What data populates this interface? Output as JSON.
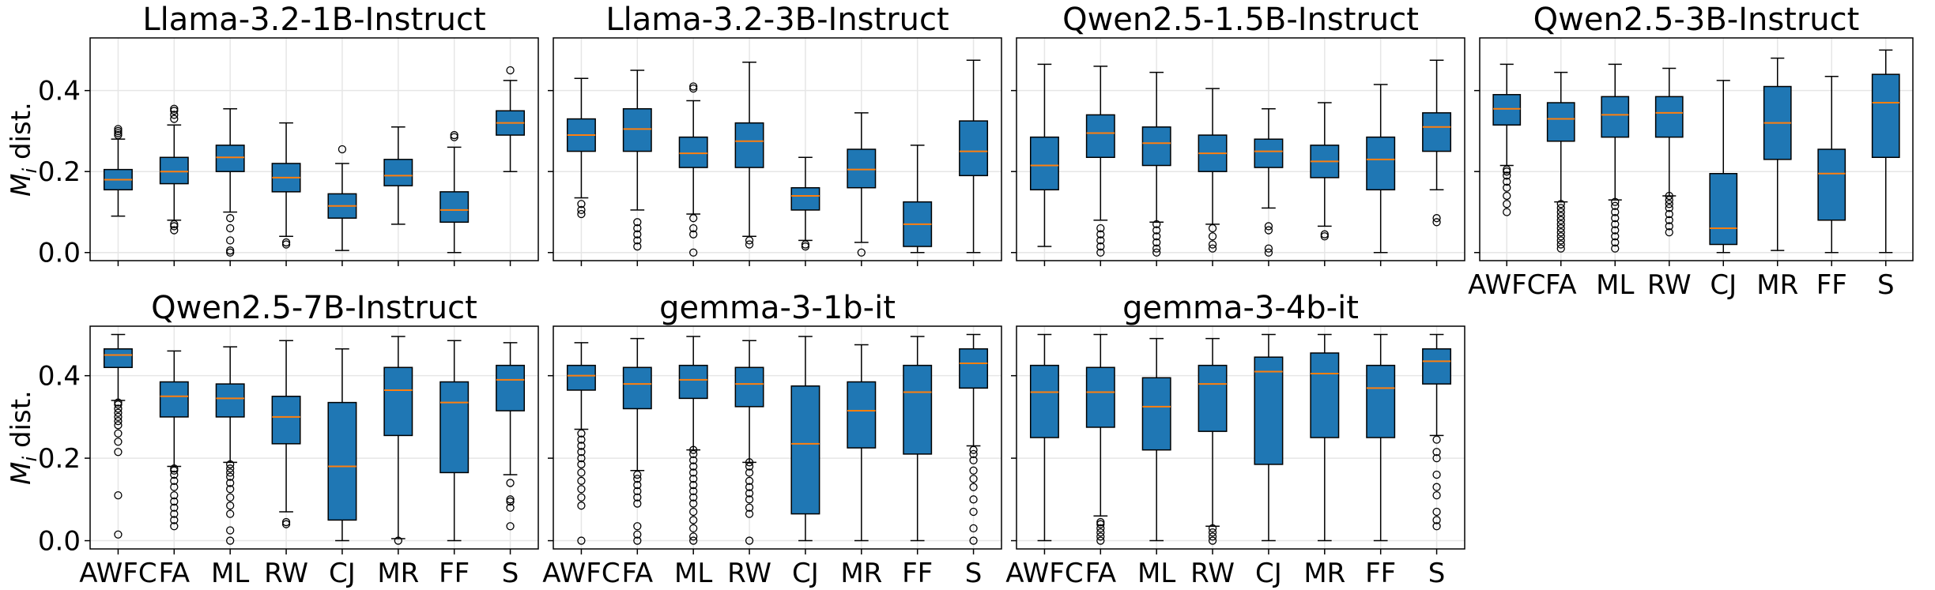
{
  "chart_data": {
    "type": "box",
    "ylabel": "M_i dist.",
    "ylabel_main": "M",
    "ylabel_sub": "i",
    "ylabel_rest": " dist.",
    "categories": [
      "AWFC",
      "FA",
      "ML",
      "RW",
      "CJ",
      "MR",
      "FF",
      "S"
    ],
    "yticks": [
      "0.0",
      "0.2",
      "0.4"
    ],
    "ytick_values": [
      0.0,
      0.2,
      0.4
    ],
    "box_color": "#1f77b4",
    "median_color": "#ff7f0e",
    "panels": [
      {
        "title": "Llama-3.2-1B-Instruct",
        "ylim": [
          -0.02,
          0.53
        ],
        "boxes": [
          {
            "min": 0.09,
            "q1": 0.155,
            "median": 0.18,
            "q3": 0.205,
            "max": 0.28,
            "fliers": [
              0.29,
              0.295,
              0.3,
              0.305
            ]
          },
          {
            "min": 0.08,
            "q1": 0.17,
            "median": 0.2,
            "q3": 0.235,
            "max": 0.315,
            "fliers": [
              0.055,
              0.065,
              0.07,
              0.33,
              0.34,
              0.35,
              0.355
            ]
          },
          {
            "min": 0.1,
            "q1": 0.2,
            "median": 0.235,
            "q3": 0.265,
            "max": 0.355,
            "fliers": [
              0.0,
              0.005,
              0.03,
              0.06,
              0.085
            ]
          },
          {
            "min": 0.04,
            "q1": 0.15,
            "median": 0.185,
            "q3": 0.22,
            "max": 0.32,
            "fliers": [
              0.02,
              0.025
            ]
          },
          {
            "min": 0.005,
            "q1": 0.085,
            "median": 0.115,
            "q3": 0.145,
            "max": 0.22,
            "fliers": [
              0.255
            ]
          },
          {
            "min": 0.07,
            "q1": 0.165,
            "median": 0.19,
            "q3": 0.23,
            "max": 0.31,
            "fliers": []
          },
          {
            "min": 0.0,
            "q1": 0.075,
            "median": 0.105,
            "q3": 0.15,
            "max": 0.26,
            "fliers": [
              0.285,
              0.29
            ]
          },
          {
            "min": 0.2,
            "q1": 0.29,
            "median": 0.32,
            "q3": 0.35,
            "max": 0.425,
            "fliers": [
              0.45
            ]
          }
        ]
      },
      {
        "title": "Llama-3.2-3B-Instruct",
        "ylim": [
          -0.02,
          0.53
        ],
        "boxes": [
          {
            "min": 0.135,
            "q1": 0.25,
            "median": 0.29,
            "q3": 0.33,
            "max": 0.43,
            "fliers": [
              0.095,
              0.105,
              0.12
            ]
          },
          {
            "min": 0.105,
            "q1": 0.25,
            "median": 0.305,
            "q3": 0.355,
            "max": 0.45,
            "fliers": [
              0.015,
              0.03,
              0.045,
              0.06,
              0.075
            ]
          },
          {
            "min": 0.095,
            "q1": 0.21,
            "median": 0.245,
            "q3": 0.285,
            "max": 0.375,
            "fliers": [
              0.0,
              0.045,
              0.06,
              0.085,
              0.405,
              0.41
            ]
          },
          {
            "min": 0.04,
            "q1": 0.21,
            "median": 0.275,
            "q3": 0.32,
            "max": 0.47,
            "fliers": [
              0.02,
              0.03
            ]
          },
          {
            "min": 0.03,
            "q1": 0.105,
            "median": 0.14,
            "q3": 0.16,
            "max": 0.235,
            "fliers": [
              0.015,
              0.02
            ]
          },
          {
            "min": 0.025,
            "q1": 0.16,
            "median": 0.205,
            "q3": 0.255,
            "max": 0.345,
            "fliers": [
              0.0
            ]
          },
          {
            "min": 0.0,
            "q1": 0.015,
            "median": 0.07,
            "q3": 0.125,
            "max": 0.265,
            "fliers": []
          },
          {
            "min": 0.0,
            "q1": 0.19,
            "median": 0.25,
            "q3": 0.325,
            "max": 0.475,
            "fliers": []
          }
        ]
      },
      {
        "title": "Qwen2.5-1.5B-Instruct",
        "ylim": [
          -0.02,
          0.53
        ],
        "boxes": [
          {
            "min": 0.015,
            "q1": 0.155,
            "median": 0.215,
            "q3": 0.285,
            "max": 0.465,
            "fliers": []
          },
          {
            "min": 0.08,
            "q1": 0.235,
            "median": 0.295,
            "q3": 0.34,
            "max": 0.46,
            "fliers": [
              0.0,
              0.015,
              0.03,
              0.045,
              0.06
            ]
          },
          {
            "min": 0.075,
            "q1": 0.215,
            "median": 0.27,
            "q3": 0.31,
            "max": 0.445,
            "fliers": [
              0.0,
              0.01,
              0.025,
              0.04,
              0.055,
              0.07
            ]
          },
          {
            "min": 0.07,
            "q1": 0.2,
            "median": 0.245,
            "q3": 0.29,
            "max": 0.405,
            "fliers": [
              0.01,
              0.02,
              0.04,
              0.06
            ]
          },
          {
            "min": 0.11,
            "q1": 0.21,
            "median": 0.25,
            "q3": 0.28,
            "max": 0.355,
            "fliers": [
              0.0,
              0.01,
              0.055,
              0.065
            ]
          },
          {
            "min": 0.065,
            "q1": 0.185,
            "median": 0.225,
            "q3": 0.265,
            "max": 0.37,
            "fliers": [
              0.04,
              0.045
            ]
          },
          {
            "min": 0.0,
            "q1": 0.155,
            "median": 0.23,
            "q3": 0.285,
            "max": 0.415,
            "fliers": []
          },
          {
            "min": 0.155,
            "q1": 0.25,
            "median": 0.31,
            "q3": 0.345,
            "max": 0.475,
            "fliers": [
              0.075,
              0.085
            ]
          }
        ]
      },
      {
        "title": "Qwen2.5-3B-Instruct",
        "ylim": [
          -0.02,
          0.53
        ],
        "boxes": [
          {
            "min": 0.215,
            "q1": 0.315,
            "median": 0.355,
            "q3": 0.39,
            "max": 0.465,
            "fliers": [
              0.1,
              0.12,
              0.14,
              0.16,
              0.175,
              0.19,
              0.2,
              0.205
            ]
          },
          {
            "min": 0.125,
            "q1": 0.275,
            "median": 0.33,
            "q3": 0.37,
            "max": 0.445,
            "fliers": [
              0.01,
              0.02,
              0.03,
              0.04,
              0.05,
              0.06,
              0.07,
              0.08,
              0.09,
              0.1,
              0.11,
              0.12
            ]
          },
          {
            "min": 0.13,
            "q1": 0.285,
            "median": 0.34,
            "q3": 0.385,
            "max": 0.465,
            "fliers": [
              0.01,
              0.025,
              0.04,
              0.055,
              0.07,
              0.085,
              0.1,
              0.115,
              0.125
            ]
          },
          {
            "min": 0.14,
            "q1": 0.285,
            "median": 0.345,
            "q3": 0.385,
            "max": 0.455,
            "fliers": [
              0.05,
              0.065,
              0.08,
              0.095,
              0.11,
              0.12,
              0.13,
              0.14
            ]
          },
          {
            "min": 0.0,
            "q1": 0.02,
            "median": 0.06,
            "q3": 0.195,
            "max": 0.425,
            "fliers": []
          },
          {
            "min": 0.005,
            "q1": 0.23,
            "median": 0.32,
            "q3": 0.41,
            "max": 0.48,
            "fliers": []
          },
          {
            "min": 0.0,
            "q1": 0.08,
            "median": 0.195,
            "q3": 0.255,
            "max": 0.435,
            "fliers": []
          },
          {
            "min": 0.0,
            "q1": 0.235,
            "median": 0.37,
            "q3": 0.44,
            "max": 0.5,
            "fliers": []
          }
        ]
      },
      {
        "title": "Qwen2.5-7B-Instruct",
        "ylim": [
          -0.02,
          0.52
        ],
        "boxes": [
          {
            "min": 0.34,
            "q1": 0.42,
            "median": 0.45,
            "q3": 0.465,
            "max": 0.5,
            "fliers": [
              0.015,
              0.11,
              0.215,
              0.24,
              0.26,
              0.28,
              0.29,
              0.3,
              0.31,
              0.32,
              0.33,
              0.335
            ]
          },
          {
            "min": 0.18,
            "q1": 0.3,
            "median": 0.35,
            "q3": 0.385,
            "max": 0.46,
            "fliers": [
              0.035,
              0.05,
              0.065,
              0.08,
              0.095,
              0.11,
              0.13,
              0.145,
              0.16,
              0.17,
              0.175
            ]
          },
          {
            "min": 0.19,
            "q1": 0.3,
            "median": 0.345,
            "q3": 0.38,
            "max": 0.47,
            "fliers": [
              0.0,
              0.025,
              0.065,
              0.085,
              0.105,
              0.125,
              0.14,
              0.155,
              0.165,
              0.175,
              0.185
            ]
          },
          {
            "min": 0.07,
            "q1": 0.235,
            "median": 0.3,
            "q3": 0.35,
            "max": 0.485,
            "fliers": [
              0.04,
              0.045
            ]
          },
          {
            "min": 0.0,
            "q1": 0.05,
            "median": 0.18,
            "q3": 0.335,
            "max": 0.465,
            "fliers": []
          },
          {
            "min": 0.005,
            "q1": 0.255,
            "median": 0.365,
            "q3": 0.42,
            "max": 0.495,
            "fliers": [
              0.0
            ]
          },
          {
            "min": 0.0,
            "q1": 0.165,
            "median": 0.335,
            "q3": 0.385,
            "max": 0.485,
            "fliers": []
          },
          {
            "min": 0.16,
            "q1": 0.315,
            "median": 0.39,
            "q3": 0.425,
            "max": 0.48,
            "fliers": [
              0.035,
              0.08,
              0.095,
              0.1,
              0.14
            ]
          }
        ]
      },
      {
        "title": "gemma-3-1b-it",
        "ylim": [
          -0.02,
          0.52
        ],
        "boxes": [
          {
            "min": 0.27,
            "q1": 0.365,
            "median": 0.4,
            "q3": 0.425,
            "max": 0.48,
            "fliers": [
              0.0,
              0.085,
              0.105,
              0.125,
              0.145,
              0.165,
              0.185,
              0.2,
              0.215,
              0.23,
              0.245,
              0.26
            ]
          },
          {
            "min": 0.17,
            "q1": 0.32,
            "median": 0.38,
            "q3": 0.42,
            "max": 0.49,
            "fliers": [
              0.0,
              0.015,
              0.035,
              0.09,
              0.105,
              0.12,
              0.135,
              0.15,
              0.16
            ]
          },
          {
            "min": 0.22,
            "q1": 0.345,
            "median": 0.39,
            "q3": 0.425,
            "max": 0.495,
            "fliers": [
              0.0,
              0.01,
              0.03,
              0.05,
              0.07,
              0.09,
              0.105,
              0.12,
              0.135,
              0.15,
              0.165,
              0.18,
              0.195,
              0.21,
              0.22
            ]
          },
          {
            "min": 0.19,
            "q1": 0.325,
            "median": 0.38,
            "q3": 0.42,
            "max": 0.485,
            "fliers": [
              0.0,
              0.065,
              0.08,
              0.1,
              0.115,
              0.13,
              0.145,
              0.165,
              0.18,
              0.19
            ]
          },
          {
            "min": 0.0,
            "q1": 0.065,
            "median": 0.235,
            "q3": 0.375,
            "max": 0.495,
            "fliers": []
          },
          {
            "min": 0.0,
            "q1": 0.225,
            "median": 0.315,
            "q3": 0.385,
            "max": 0.475,
            "fliers": []
          },
          {
            "min": 0.0,
            "q1": 0.21,
            "median": 0.36,
            "q3": 0.425,
            "max": 0.495,
            "fliers": []
          },
          {
            "min": 0.23,
            "q1": 0.37,
            "median": 0.43,
            "q3": 0.465,
            "max": 0.5,
            "fliers": [
              0.0,
              0.03,
              0.07,
              0.1,
              0.13,
              0.15,
              0.17,
              0.195,
              0.21,
              0.22
            ]
          }
        ]
      },
      {
        "title": "gemma-3-4b-it",
        "ylim": [
          -0.02,
          0.52
        ],
        "boxes": [
          {
            "min": 0.0,
            "q1": 0.25,
            "median": 0.36,
            "q3": 0.425,
            "max": 0.5,
            "fliers": []
          },
          {
            "min": 0.06,
            "q1": 0.275,
            "median": 0.36,
            "q3": 0.42,
            "max": 0.5,
            "fliers": [
              0.0,
              0.01,
              0.02,
              0.03,
              0.04,
              0.045
            ]
          },
          {
            "min": 0.0,
            "q1": 0.22,
            "median": 0.325,
            "q3": 0.395,
            "max": 0.49,
            "fliers": []
          },
          {
            "min": 0.035,
            "q1": 0.265,
            "median": 0.38,
            "q3": 0.425,
            "max": 0.49,
            "fliers": [
              0.0,
              0.01,
              0.02,
              0.03
            ]
          },
          {
            "min": 0.0,
            "q1": 0.185,
            "median": 0.41,
            "q3": 0.445,
            "max": 0.5,
            "fliers": []
          },
          {
            "min": 0.0,
            "q1": 0.25,
            "median": 0.405,
            "q3": 0.455,
            "max": 0.5,
            "fliers": []
          },
          {
            "min": 0.0,
            "q1": 0.25,
            "median": 0.37,
            "q3": 0.425,
            "max": 0.5,
            "fliers": []
          },
          {
            "min": 0.255,
            "q1": 0.38,
            "median": 0.435,
            "q3": 0.465,
            "max": 0.5,
            "fliers": [
              0.035,
              0.05,
              0.07,
              0.11,
              0.13,
              0.16,
              0.2,
              0.215,
              0.245
            ]
          }
        ]
      }
    ]
  }
}
